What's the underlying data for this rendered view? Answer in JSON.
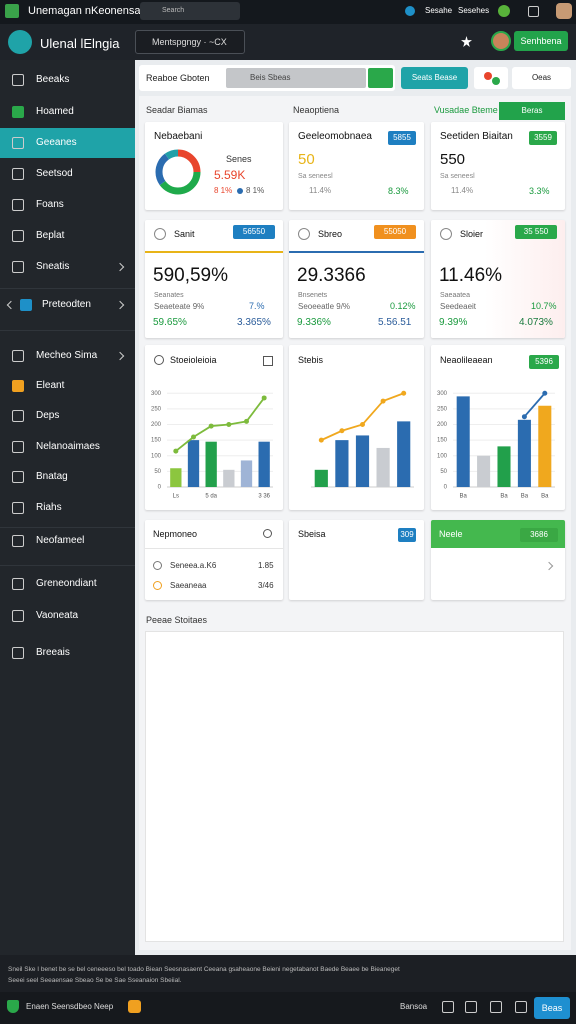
{
  "topbar": {
    "title": "Unemagan nKeonensae",
    "search": "Search",
    "links": [
      "Sesahe",
      "Sesehes"
    ]
  },
  "header": {
    "brand": "Ulenal lElngia",
    "search": "Mentspgngy · ~CX",
    "button": "Senhbena"
  },
  "sidebar": {
    "active": 2,
    "items": [
      "Beeaks",
      "Hoamed",
      "Geeanes",
      "Seetsod",
      "Foans",
      "Beplat",
      "Sneatis",
      "Preteodten",
      "Mecheo Sima",
      "Eleant",
      "Deps",
      "Nelanoaimaes",
      "Bnatag",
      "Riahs",
      "Neofameel",
      "Greneondiant",
      "Vaoneata",
      "Breeais"
    ]
  },
  "toolbar": {
    "label": "Reaboe Gboten",
    "input": "Beis Sbeas",
    "primary": "Seats Bease",
    "secondary": "Oeas"
  },
  "tabs": [
    "Seadar Biamas",
    "Neaoptiena",
    "Vusadae Bteme",
    "Beras"
  ],
  "overview": [
    {
      "title": "Nebaebani",
      "legend": "Senes",
      "value": "5.59K",
      "note": "8 1%",
      "donut": {
        "values": [
          25,
          40,
          25,
          10
        ],
        "colors": [
          "#e8452c",
          "#1faa4b",
          "#2b6cb0",
          "#21a0a8"
        ]
      }
    },
    {
      "title": "Geeleomobnaea",
      "badge": "5855",
      "value": "50",
      "label": "Sa seneesl",
      "change": "11.4%",
      "delta": "8.3%"
    },
    {
      "title": "Seetiden Biaitan",
      "badge": "3559",
      "value": "550",
      "label": "Sa seneesl",
      "change": "11.4%",
      "delta": "3.3%"
    }
  ],
  "kpis": [
    {
      "title": "Sanit",
      "badge": "56550",
      "value": "590,59%",
      "label": "Seanates",
      "sublabel": "Seaeteate 9%",
      "note": "7.%",
      "stat1": "59.65%",
      "stat2": "3.365%"
    },
    {
      "title": "Sbreo",
      "badge": "55050",
      "value": "29.3366",
      "label": "Bnsenets",
      "sublabel": "Seoeeatle 9/%",
      "note": "0.12%",
      "stat1": "9.336%",
      "stat2": "5.56.51"
    },
    {
      "title": "Sloier",
      "badge": "35 550",
      "value": "11.46%",
      "label": "Saeaatea",
      "sublabel": "Seedeaeit",
      "note": "10.7%",
      "stat1": "9.39%",
      "stat2": "4.073%"
    }
  ],
  "chart_data": [
    {
      "type": "bar",
      "title": "Stoeioleioia",
      "categories": [
        "Ls",
        null,
        "5 da",
        null,
        null,
        "3 36"
      ],
      "values": [
        60,
        150,
        145,
        55,
        85,
        145
      ],
      "colors": [
        "#8cc63f",
        "#2b6cb0",
        "#22a04b",
        "#c9ccd1",
        "#9fb4d6",
        "#2b6cb0"
      ],
      "line": {
        "values": [
          115,
          160,
          195,
          200,
          210,
          285
        ],
        "color": "#7dbb3c"
      },
      "ylim": [
        0,
        320
      ],
      "yticks": [
        0,
        50,
        100,
        150,
        200,
        250,
        300
      ]
    },
    {
      "type": "bar",
      "title": "Stebis",
      "categories": [
        null,
        null,
        null,
        null,
        null
      ],
      "values": [
        55,
        150,
        165,
        125,
        210
      ],
      "colors": [
        "#22a04b",
        "#2b6cb0",
        "#2b6cb0",
        "#c9ccd1",
        "#2b6cb0"
      ],
      "line": {
        "values": [
          150,
          180,
          200,
          275,
          300
        ],
        "color": "#f0a81e"
      },
      "ylim": [
        0,
        320
      ]
    },
    {
      "type": "bar",
      "title": "Neaolileaean",
      "badge": "5396",
      "categories": [
        "Ba",
        null,
        "Ba",
        "Ba",
        "Ba"
      ],
      "values": [
        290,
        100,
        130,
        215,
        260
      ],
      "colors": [
        "#2b6cb0",
        "#c9ccd1",
        "#22a04b",
        "#2b6cb0",
        "#f0a81e"
      ],
      "line": {
        "values": [
          null,
          null,
          null,
          225,
          300
        ],
        "color": "#2b6cb0"
      },
      "ylim": [
        0,
        320
      ],
      "yticks": [
        0,
        50,
        100,
        150,
        200,
        250,
        300
      ]
    }
  ],
  "bottom_cards": [
    {
      "title": "Nepmoneo",
      "rows": [
        [
          "Seneea.a.K6",
          "1.85"
        ],
        [
          "Saeaneaa",
          "3/46"
        ]
      ]
    },
    {
      "title": "Sbeisa",
      "badge": "309"
    },
    {
      "title": "Neele",
      "badge": "3686"
    }
  ],
  "panel": {
    "title": "Peeae Stoitaes"
  },
  "footer": {
    "lines": [
      "Sneil Ske I benet be se bel ceneeeso bel toado Biean Seesnasaent Ceeana gsaheaone Beieni negetabanot Baede Beaee be Bieaneget",
      "Seeei seel Seeaensae Sbeao Se be Sae Sseanaion Sbeiial."
    ],
    "brand": "Enaen Seensdbeo Neep",
    "status": "Bansoa",
    "button": "Beas"
  }
}
